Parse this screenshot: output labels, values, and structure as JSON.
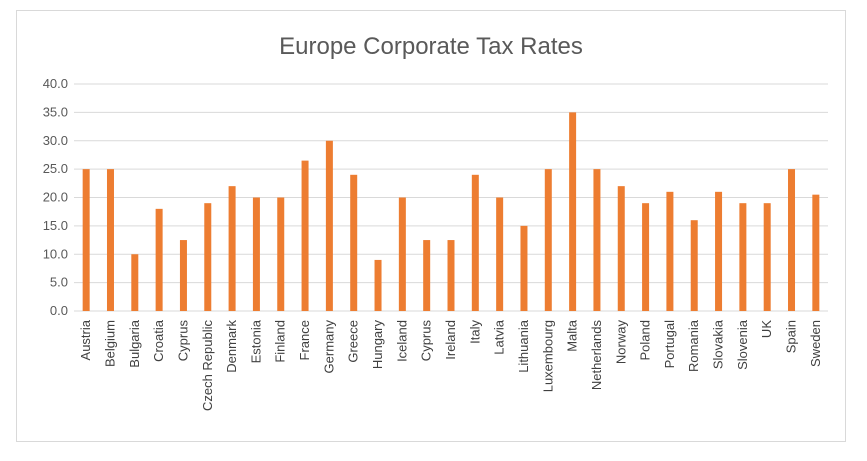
{
  "chart_data": {
    "type": "bar",
    "title": "Europe Corporate Tax Rates",
    "xlabel": "",
    "ylabel": "",
    "ylim": [
      0,
      40
    ],
    "yticks": [
      "0.0",
      "5.0",
      "10.0",
      "15.0",
      "20.0",
      "25.0",
      "30.0",
      "35.0",
      "40.0"
    ],
    "grid": true,
    "legend": "none",
    "bar_color": "#ED7D31",
    "categories": [
      "Austria",
      "Belgium",
      "Bulgaria",
      "Croatia",
      "Cyprus",
      "Czech Republic",
      "Denmark",
      "Estonia",
      "Finland",
      "France",
      "Germany",
      "Greece",
      "Hungary",
      "Iceland",
      "Cyprus",
      "Ireland",
      "Italy",
      "Latvia",
      "Lithuania",
      "Luxembourg",
      "Malta",
      "Netherlands",
      "Norway",
      "Poland",
      "Portugal",
      "Romania",
      "Slovakia",
      "Slovenia",
      "UK",
      "Spain",
      "Sweden"
    ],
    "values": [
      25,
      25,
      10,
      18,
      12.5,
      19,
      22,
      20,
      20,
      26.5,
      30,
      24,
      9,
      20,
      12.5,
      12.5,
      24,
      20,
      15,
      25,
      35,
      25,
      22,
      19,
      21,
      16,
      21,
      19,
      19,
      25,
      20.5
    ]
  }
}
